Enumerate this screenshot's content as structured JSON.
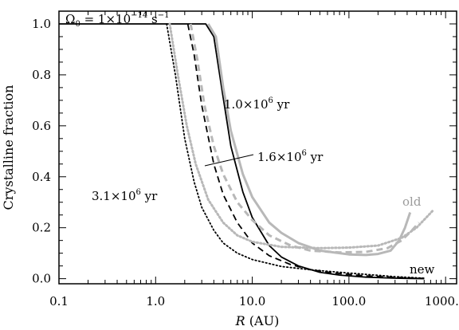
{
  "chart_data": {
    "type": "line",
    "xlabel_var": "R",
    "xlabel_unit": "(AU)",
    "ylabel": "Crystalline fraction",
    "xscale": "log",
    "xlim": [
      0.1,
      1300
    ],
    "ylim": [
      -0.02,
      1.05
    ],
    "grid": false,
    "x_ticks": [
      {
        "value": 0.1,
        "label": "0.1"
      },
      {
        "value": 1,
        "label": "1.0"
      },
      {
        "value": 10,
        "label": "10.0"
      },
      {
        "value": 100,
        "label": "100.0"
      },
      {
        "value": 1000,
        "label": "1000.0"
      }
    ],
    "y_ticks": [
      {
        "value": 0.0,
        "label": "0.0"
      },
      {
        "value": 0.2,
        "label": "0.2"
      },
      {
        "value": 0.4,
        "label": "0.4"
      },
      {
        "value": 0.6,
        "label": "0.6"
      },
      {
        "value": 0.8,
        "label": "0.8"
      },
      {
        "value": 1.0,
        "label": "1.0"
      }
    ],
    "title_annotation": {
      "prefix": "Ω",
      "sub": "0",
      "mid": " = 1×10",
      "sup": "−14",
      "unit": " s",
      "unit_sup": "−1"
    },
    "series": [
      {
        "model": "new",
        "time": "1.0e6",
        "style": "solid",
        "color": "#000000",
        "points": [
          [
            0.1,
            1.0
          ],
          [
            3.3,
            1.0
          ],
          [
            4.0,
            0.95
          ],
          [
            5.0,
            0.71
          ],
          [
            6.0,
            0.52
          ],
          [
            8.0,
            0.34
          ],
          [
            10,
            0.24
          ],
          [
            15,
            0.13
          ],
          [
            20,
            0.085
          ],
          [
            30,
            0.05
          ],
          [
            50,
            0.025
          ],
          [
            80,
            0.014
          ],
          [
            150,
            0.006
          ],
          [
            300,
            0.002
          ],
          [
            600,
            0.0
          ]
        ]
      },
      {
        "model": "new",
        "time": "1.6e6",
        "style": "dashed",
        "color": "#000000",
        "points": [
          [
            2.15,
            1.0
          ],
          [
            2.5,
            0.88
          ],
          [
            3.0,
            0.68
          ],
          [
            4.0,
            0.45
          ],
          [
            5.0,
            0.33
          ],
          [
            7.0,
            0.22
          ],
          [
            10,
            0.14
          ],
          [
            15,
            0.09
          ],
          [
            25,
            0.055
          ],
          [
            40,
            0.035
          ],
          [
            70,
            0.022
          ],
          [
            150,
            0.011
          ],
          [
            300,
            0.005
          ],
          [
            600,
            0.001
          ]
        ]
      },
      {
        "model": "new",
        "time": "3.1e6",
        "style": "dotted",
        "color": "#000000",
        "points": [
          [
            1.3,
            1.0
          ],
          [
            1.6,
            0.8
          ],
          [
            2.0,
            0.55
          ],
          [
            2.5,
            0.38
          ],
          [
            3.0,
            0.28
          ],
          [
            4.0,
            0.19
          ],
          [
            5.0,
            0.14
          ],
          [
            7.0,
            0.1
          ],
          [
            10,
            0.075
          ],
          [
            20,
            0.048
          ],
          [
            40,
            0.035
          ],
          [
            80,
            0.025
          ],
          [
            150,
            0.017
          ],
          [
            300,
            0.008
          ],
          [
            600,
            0.002
          ]
        ]
      },
      {
        "model": "old",
        "time": "1.0e6",
        "style": "solid",
        "color": "#b8b8b8",
        "points": [
          [
            3.5,
            1.0
          ],
          [
            4.2,
            0.95
          ],
          [
            5.0,
            0.75
          ],
          [
            6.0,
            0.58
          ],
          [
            8.0,
            0.41
          ],
          [
            10,
            0.32
          ],
          [
            15,
            0.22
          ],
          [
            20,
            0.18
          ],
          [
            30,
            0.14
          ],
          [
            50,
            0.11
          ],
          [
            100,
            0.095
          ],
          [
            150,
            0.093
          ],
          [
            200,
            0.097
          ],
          [
            270,
            0.11
          ],
          [
            330,
            0.15
          ],
          [
            380,
            0.2
          ],
          [
            430,
            0.26
          ]
        ]
      },
      {
        "model": "old",
        "time": "1.6e6",
        "style": "dashed",
        "color": "#b8b8b8",
        "points": [
          [
            2.3,
            1.0
          ],
          [
            2.7,
            0.86
          ],
          [
            3.2,
            0.68
          ],
          [
            4.0,
            0.52
          ],
          [
            5.0,
            0.41
          ],
          [
            7.0,
            0.3
          ],
          [
            10,
            0.23
          ],
          [
            15,
            0.17
          ],
          [
            25,
            0.13
          ],
          [
            40,
            0.11
          ],
          [
            80,
            0.103
          ],
          [
            150,
            0.105
          ],
          [
            250,
            0.12
          ],
          [
            350,
            0.15
          ],
          [
            450,
            0.19
          ],
          [
            530,
            0.22
          ]
        ]
      },
      {
        "model": "old",
        "time": "3.1e6",
        "style": "dotted",
        "color": "#b8b8b8",
        "points": [
          [
            1.4,
            1.0
          ],
          [
            1.7,
            0.8
          ],
          [
            2.1,
            0.6
          ],
          [
            2.6,
            0.45
          ],
          [
            3.5,
            0.31
          ],
          [
            5.0,
            0.22
          ],
          [
            7.0,
            0.17
          ],
          [
            10,
            0.145
          ],
          [
            20,
            0.125
          ],
          [
            50,
            0.12
          ],
          [
            100,
            0.122
          ],
          [
            200,
            0.13
          ],
          [
            350,
            0.16
          ],
          [
            500,
            0.2
          ],
          [
            650,
            0.245
          ],
          [
            750,
            0.27
          ]
        ]
      }
    ],
    "labels": {
      "t1": {
        "text": "1.0×10",
        "sup": "6",
        "unit": " yr"
      },
      "t2": {
        "text": "1.6×10",
        "sup": "6",
        "unit": " yr"
      },
      "t3": {
        "text": "3.1×10",
        "sup": "6",
        "unit": " yr"
      },
      "old": "old",
      "new": "new"
    },
    "colors": {
      "new": "#000000",
      "old": "#b8b8b8",
      "old_label": "#9a9a9a"
    }
  }
}
